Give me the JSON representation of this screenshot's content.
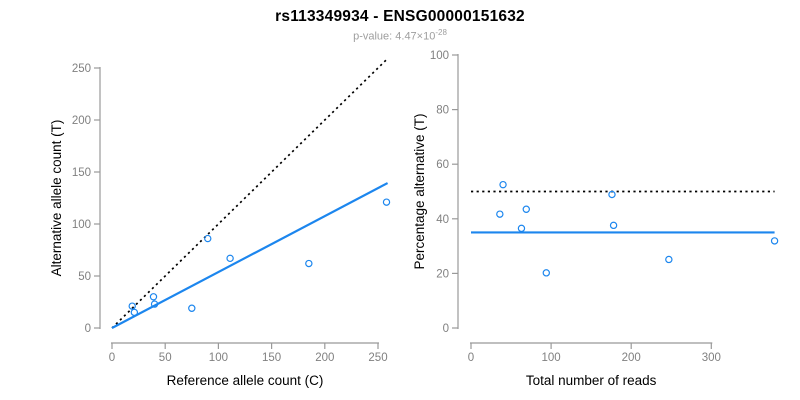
{
  "header": {
    "title": "rs113349934 - ENSG00000151632",
    "subtitle_text": "p-value: 4.47×10",
    "subtitle_exponent": "-28"
  },
  "colors": {
    "accent_blue": "#1C86EE",
    "axis_line": "#999999",
    "tick_label": "#808080",
    "axis_title": "#000000",
    "subtitle": "#9E9E9E",
    "background": "#FFFFFF"
  },
  "chart_data": [
    {
      "type": "scatter",
      "name": "allele-counts",
      "xlabel": "Reference allele count (C)",
      "ylabel": "Alternative allele count (T)",
      "xlim": [
        0,
        260
      ],
      "ylim": [
        0,
        260
      ],
      "grid": false,
      "xticks": [
        0,
        50,
        100,
        150,
        200,
        250
      ],
      "yticks": [
        0,
        50,
        100,
        150,
        200,
        250
      ],
      "point_color": "#1C86EE",
      "points": [
        [
          19,
          21
        ],
        [
          21,
          15
        ],
        [
          39,
          30
        ],
        [
          40,
          23
        ],
        [
          75,
          19
        ],
        [
          90,
          86
        ],
        [
          111,
          67
        ],
        [
          185,
          62
        ],
        [
          258,
          121
        ]
      ],
      "lines": [
        {
          "name": "identity-line",
          "slope": 1,
          "intercept": 0,
          "x_range": [
            0,
            259
          ],
          "style": "dotted",
          "color": "#000000"
        },
        {
          "name": "fit-line",
          "slope": 0.538,
          "intercept": 0,
          "x_range": [
            0,
            259
          ],
          "style": "solid",
          "color": "#1C86EE"
        }
      ]
    },
    {
      "type": "scatter",
      "name": "percentage-vs-reads",
      "xlabel": "Total number of reads",
      "ylabel": "Percentage alternative (T)",
      "xlim": [
        0,
        380
      ],
      "ylim": [
        0,
        100
      ],
      "grid": false,
      "xticks": [
        0,
        100,
        200,
        300
      ],
      "yticks": [
        0,
        20,
        40,
        60,
        80,
        100
      ],
      "point_color": "#1C86EE",
      "points": [
        [
          40,
          52.5
        ],
        [
          36,
          41.7
        ],
        [
          69,
          43.5
        ],
        [
          63,
          36.5
        ],
        [
          94,
          20.2
        ],
        [
          176,
          48.9
        ],
        [
          178,
          37.6
        ],
        [
          247,
          25.1
        ],
        [
          379,
          31.9
        ]
      ],
      "lines": [
        {
          "name": "fifty-percent-line",
          "slope": 0,
          "intercept": 50,
          "x_range": [
            0,
            379
          ],
          "style": "dotted",
          "color": "#000000"
        },
        {
          "name": "mean-percentage-line",
          "slope": 0,
          "intercept": 35,
          "x_range": [
            0,
            379
          ],
          "style": "solid",
          "color": "#1C86EE"
        }
      ]
    }
  ]
}
